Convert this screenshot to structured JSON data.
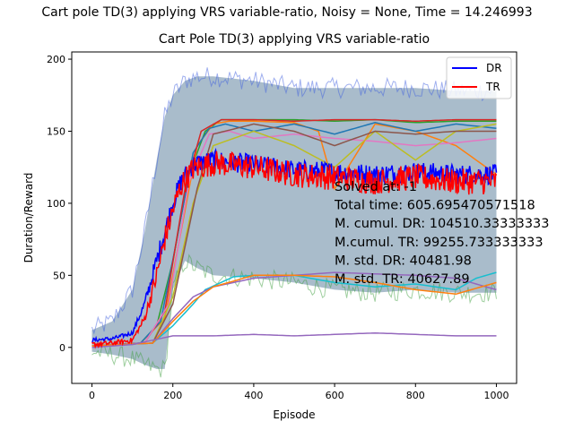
{
  "figure": {
    "suptitle": "Cart pole TD(3) applying VRS variable-ratio, Noisy = None, Time = 14.246993",
    "annotation": [
      "Solved at: -1",
      "Total time: 605.695470571518",
      "M. cumul. DR: 104510.33333333",
      "M.cumul. TR: 99255.733333333",
      "M. std. DR: 40481.98",
      "M. std. TR: 40627.89"
    ]
  },
  "chart_data": {
    "type": "line",
    "title": "Cart Pole TD(3) applying VRS variable-ratio",
    "xlabel": "Episode",
    "ylabel": "Duration/Reward",
    "xlim": [
      -50,
      1050
    ],
    "ylim": [
      -25,
      205
    ],
    "xticks": [
      0,
      200,
      400,
      600,
      800,
      1000
    ],
    "yticks": [
      0,
      50,
      100,
      150,
      200
    ],
    "grid": false,
    "legend": {
      "placement": "top-right",
      "entries": [
        "DR",
        "TR"
      ]
    },
    "colors": {
      "DR": "#0000ff",
      "TR": "#ff0000",
      "band": "#7090a8",
      "band_edge_blue": "#4060e0",
      "band_edge_green": "#40a040",
      "blue": "#1f77b4",
      "orange": "#ff7f0e",
      "green": "#2ca02c",
      "red": "#d62728",
      "purple": "#9467bd",
      "pink": "#e377c2",
      "olive": "#bcbd22",
      "cyan": "#17becf",
      "brown": "#8c564b"
    },
    "band": {
      "x": [
        0,
        50,
        100,
        130,
        160,
        180,
        200,
        230,
        260,
        300,
        400,
        500,
        600,
        700,
        800,
        900,
        1000
      ],
      "upper": [
        12,
        18,
        40,
        80,
        130,
        160,
        175,
        185,
        188,
        188,
        185,
        180,
        180,
        180,
        180,
        178,
        178
      ],
      "lower": [
        -3,
        -5,
        -8,
        -12,
        -15,
        -15,
        40,
        60,
        55,
        50,
        48,
        45,
        40,
        38,
        40,
        38,
        38
      ]
    },
    "series": [
      {
        "name": "DR",
        "color": "#0000ff",
        "noise": 7,
        "x": [
          0,
          50,
          100,
          130,
          160,
          180,
          200,
          220,
          250,
          300,
          400,
          500,
          600,
          700,
          800,
          900,
          1000
        ],
        "y": [
          5,
          6,
          10,
          30,
          60,
          80,
          100,
          115,
          127,
          130,
          127,
          123,
          122,
          120,
          122,
          120,
          120
        ]
      },
      {
        "name": "TR",
        "color": "#ff0000",
        "noise": 9,
        "x": [
          0,
          50,
          100,
          130,
          160,
          180,
          200,
          220,
          250,
          300,
          400,
          500,
          600,
          700,
          800,
          900,
          1000
        ],
        "y": [
          2,
          3,
          5,
          20,
          50,
          75,
          95,
          112,
          124,
          128,
          125,
          120,
          118,
          115,
          118,
          115,
          115
        ]
      },
      {
        "color": "#2ca02c",
        "x": [
          0,
          120,
          160,
          200,
          240,
          280,
          320,
          360,
          500,
          600,
          700,
          800,
          900,
          1000
        ],
        "y": [
          1,
          3,
          15,
          60,
          120,
          150,
          158,
          158,
          158,
          157,
          158,
          156,
          157,
          157
        ]
      },
      {
        "color": "#ff7f0e",
        "x": [
          0,
          120,
          180,
          220,
          260,
          300,
          340,
          400,
          500,
          560,
          600,
          700,
          800,
          900,
          1000
        ],
        "y": [
          1,
          3,
          20,
          80,
          140,
          155,
          157,
          157,
          156,
          150,
          110,
          155,
          150,
          140,
          120
        ]
      },
      {
        "color": "#1f77b4",
        "x": [
          0,
          120,
          170,
          210,
          250,
          290,
          330,
          400,
          500,
          600,
          700,
          800,
          900,
          1000
        ],
        "y": [
          1,
          3,
          18,
          75,
          135,
          152,
          155,
          150,
          155,
          148,
          156,
          150,
          155,
          152
        ]
      },
      {
        "color": "#d62728",
        "x": [
          0,
          130,
          180,
          230,
          270,
          320,
          400,
          500,
          600,
          700,
          800,
          900,
          1000
        ],
        "y": [
          1,
          3,
          25,
          110,
          150,
          158,
          158,
          157,
          158,
          158,
          157,
          158,
          158
        ]
      },
      {
        "color": "#e377c2",
        "x": [
          0,
          130,
          190,
          240,
          290,
          340,
          400,
          500,
          600,
          700,
          800,
          900,
          1000
        ],
        "y": [
          1,
          3,
          30,
          115,
          148,
          150,
          145,
          148,
          145,
          143,
          140,
          142,
          145
        ]
      },
      {
        "color": "#bcbd22",
        "x": [
          0,
          150,
          200,
          250,
          300,
          400,
          500,
          600,
          700,
          800,
          900,
          1000
        ],
        "y": [
          1,
          3,
          35,
          100,
          140,
          150,
          140,
          125,
          150,
          130,
          150,
          155
        ]
      },
      {
        "color": "#8c564b",
        "x": [
          0,
          150,
          200,
          260,
          300,
          400,
          500,
          600,
          700,
          800,
          900,
          1000
        ],
        "y": [
          1,
          3,
          30,
          110,
          148,
          155,
          150,
          140,
          150,
          148,
          150,
          150
        ]
      },
      {
        "color": "#17becf",
        "x": [
          0,
          150,
          200,
          250,
          280,
          350,
          400,
          500,
          600,
          700,
          800,
          900,
          950,
          1000
        ],
        "y": [
          1,
          3,
          15,
          30,
          40,
          49,
          50,
          50,
          45,
          42,
          44,
          40,
          48,
          52
        ]
      },
      {
        "color": "#9467bd",
        "x": [
          0,
          150,
          200,
          250,
          300,
          400,
          500,
          600,
          700,
          800,
          900,
          1000
        ],
        "y": [
          1,
          3,
          20,
          35,
          42,
          48,
          50,
          52,
          51,
          50,
          48,
          40
        ]
      },
      {
        "color": "#ff7f0e",
        "x": [
          0,
          150,
          200,
          250,
          300,
          400,
          500,
          600,
          700,
          800,
          900,
          1000
        ],
        "y": [
          1,
          3,
          18,
          32,
          42,
          50,
          50,
          49,
          45,
          40,
          37,
          45
        ]
      },
      {
        "color": "#9467bd",
        "x": [
          0,
          100,
          150,
          200,
          300,
          400,
          500,
          600,
          700,
          800,
          900,
          1000
        ],
        "y": [
          0,
          2,
          5,
          8,
          8,
          9,
          8,
          9,
          10,
          9,
          8,
          8
        ]
      }
    ]
  }
}
